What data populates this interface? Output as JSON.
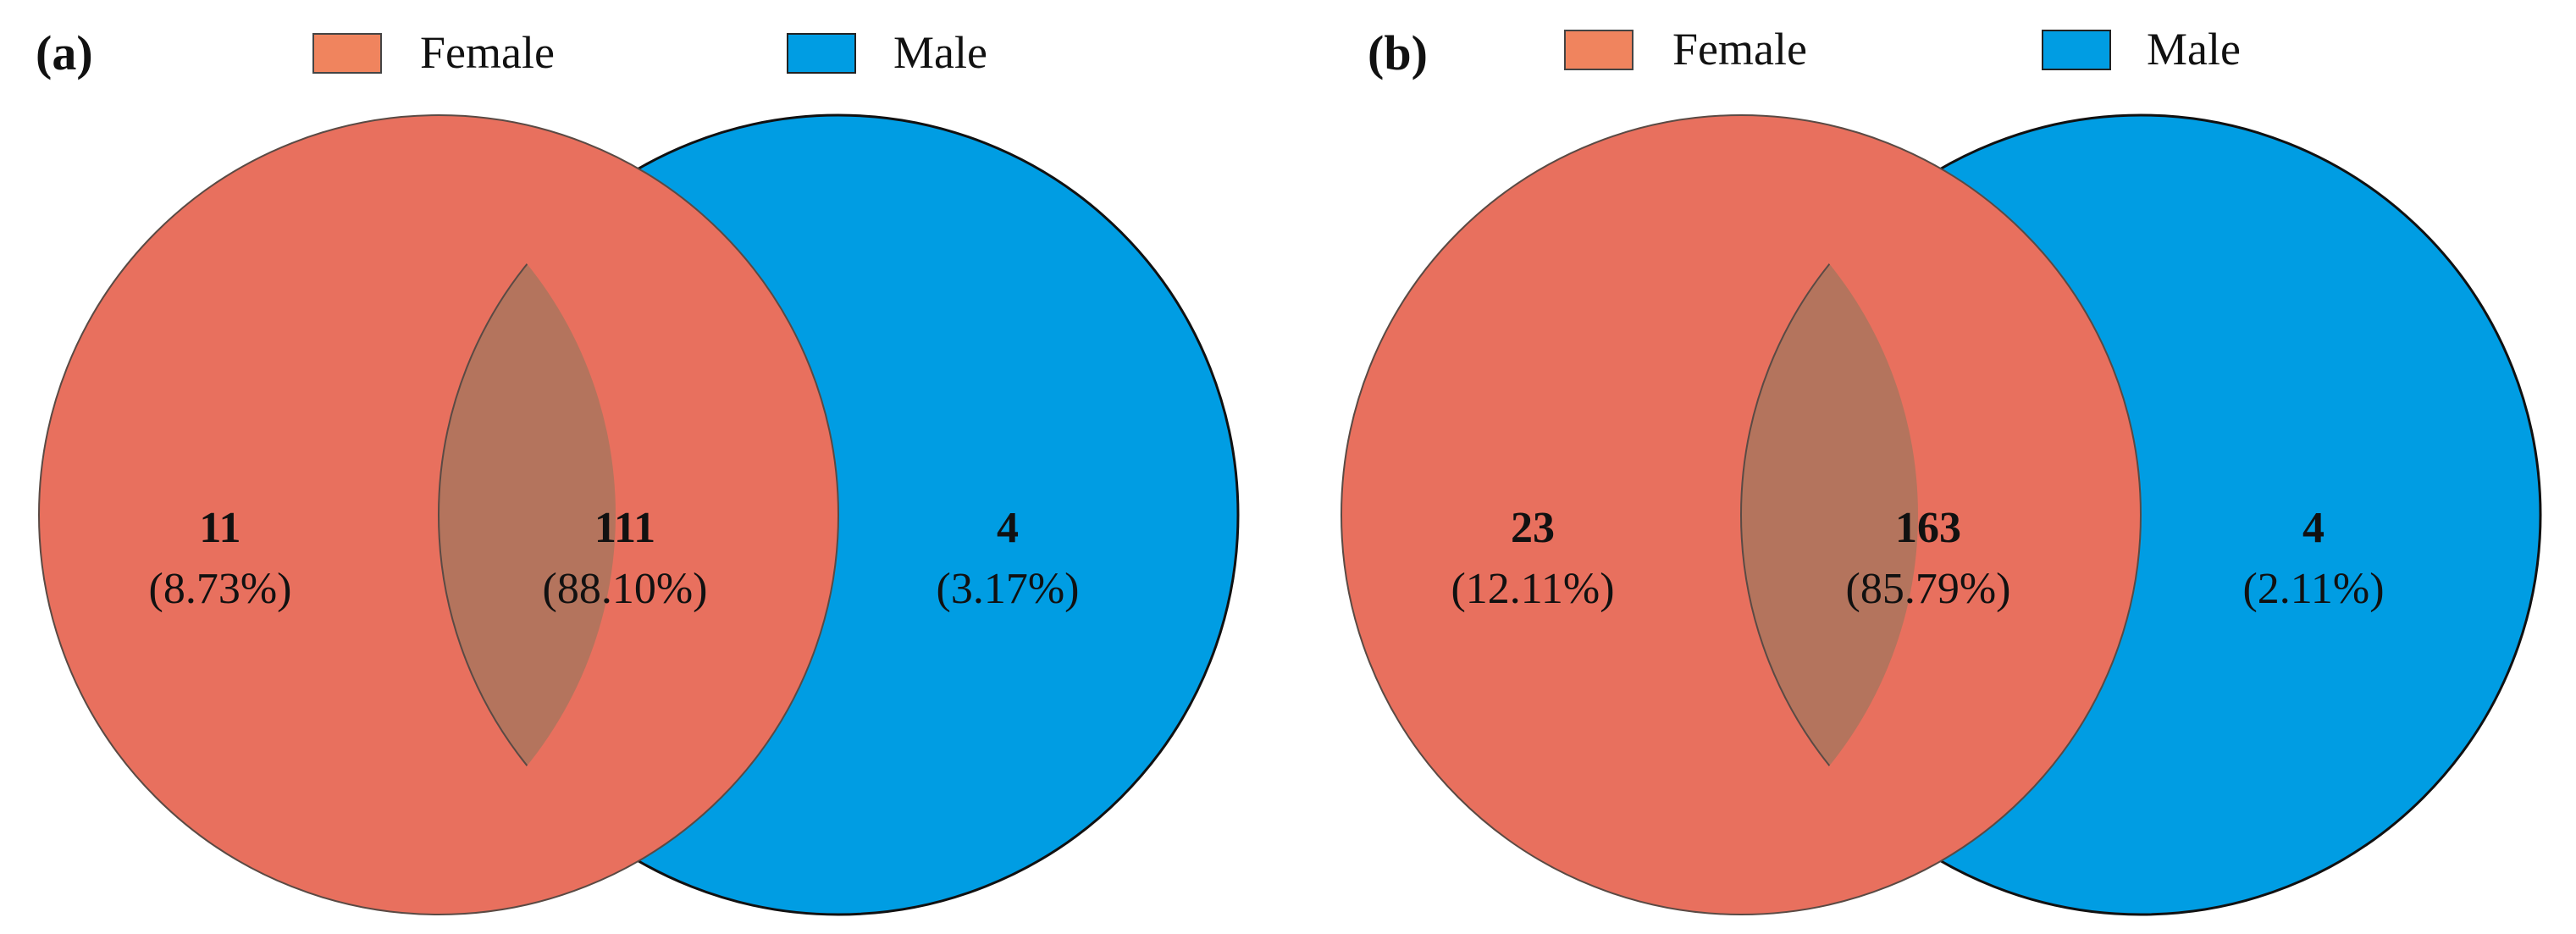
{
  "figure": {
    "colors": {
      "female": "#E8705E",
      "female_legend": "#F0845E",
      "male": "#009DE3",
      "overlap": "#B4745D",
      "stroke": "#222222"
    },
    "panels": [
      {
        "label": "(a)",
        "legend": [
          {
            "label": "Female",
            "color_key": "female_legend"
          },
          {
            "label": "Male",
            "color_key": "male"
          }
        ],
        "regions": {
          "female_only": {
            "count": "11",
            "percent": "(8.73%)"
          },
          "shared": {
            "count": "111",
            "percent": "(88.10%)"
          },
          "male_only": {
            "count": "4",
            "percent": "(3.17%)"
          }
        }
      },
      {
        "label": "(b)",
        "legend": [
          {
            "label": "Female",
            "color_key": "female_legend"
          },
          {
            "label": "Male",
            "color_key": "male"
          }
        ],
        "regions": {
          "female_only": {
            "count": "23",
            "percent": "(12.11%)"
          },
          "shared": {
            "count": "163",
            "percent": "(85.79%)"
          },
          "male_only": {
            "count": "4",
            "percent": "(2.11%)"
          }
        }
      }
    ]
  }
}
